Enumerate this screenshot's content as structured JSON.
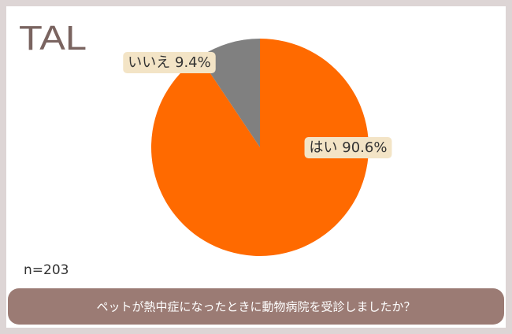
{
  "logo": "TAL",
  "chart_data": {
    "type": "pie",
    "title": "ペットが熱中症になったときに動物病院を受診しましたか？",
    "note": "n=203",
    "categories": [
      "はい",
      "いいえ"
    ],
    "values": [
      90.6,
      9.4
    ],
    "value_labels": [
      "はい 90.6%",
      "いいえ 9.4%"
    ],
    "colors": [
      "#ff6a00",
      "#808080"
    ]
  }
}
